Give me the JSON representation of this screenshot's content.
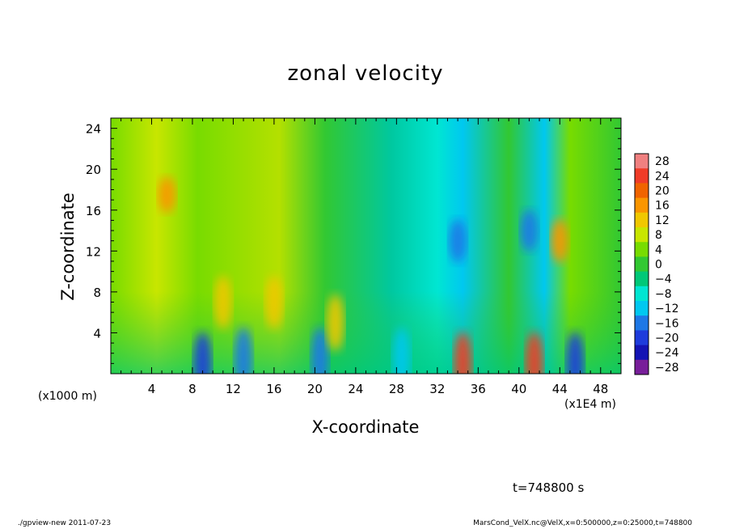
{
  "chart_data": {
    "type": "heatmap",
    "title": "zonal velocity",
    "xlabel": "X-coordinate",
    "ylabel": "Z-coordinate",
    "x_unit_left": "(x1000 m)",
    "x_unit_right": "(x1E4 m)",
    "xlim": [
      0,
      50
    ],
    "ylim": [
      0,
      25
    ],
    "x_ticks": [
      4,
      8,
      12,
      16,
      20,
      24,
      28,
      32,
      36,
      40,
      44,
      48
    ],
    "y_ticks": [
      4,
      8,
      12,
      16,
      20,
      24
    ],
    "colorbar": {
      "levels": [
        28,
        24,
        20,
        16,
        12,
        8,
        4,
        0,
        -4,
        -8,
        -12,
        -16,
        -20,
        -24,
        -28
      ],
      "colors": [
        "#f08080",
        "#f03c28",
        "#f06400",
        "#fa9600",
        "#f0c800",
        "#c8e600",
        "#78dc00",
        "#32c832",
        "#00c878",
        "#00e6d2",
        "#00c8f0",
        "#1e78e6",
        "#1e3cdc",
        "#1414b4",
        "#781e9a"
      ]
    },
    "features": [
      {
        "x": 5.5,
        "z": 17.5,
        "value": 14
      },
      {
        "x": 44,
        "z": 13,
        "value": 16
      },
      {
        "x": 34.5,
        "z": 1,
        "value": 24
      },
      {
        "x": 41.5,
        "z": 1,
        "value": 22
      },
      {
        "x": 45.5,
        "z": 1,
        "value": -22
      },
      {
        "x": 34,
        "z": 13,
        "value": -16
      },
      {
        "x": 41,
        "z": 14,
        "value": -18
      },
      {
        "x": 13,
        "z": 1.5,
        "value": -16
      },
      {
        "x": 9,
        "z": 1,
        "value": -20
      },
      {
        "x": 20.5,
        "z": 1.5,
        "value": -16
      },
      {
        "x": 28.5,
        "z": 1.5,
        "value": -14
      },
      {
        "x": 22,
        "z": 5,
        "value": 12
      },
      {
        "x": 11,
        "z": 7,
        "value": 12
      },
      {
        "x": 16,
        "z": 7,
        "value": 12
      }
    ]
  },
  "annotations": {
    "time": "t=748800 s",
    "footer_left": "./gpview-new   2011-07-23",
    "footer_right": "MarsCond_VelX.nc@VelX,x=0:500000,z=0:25000,t=748800"
  }
}
